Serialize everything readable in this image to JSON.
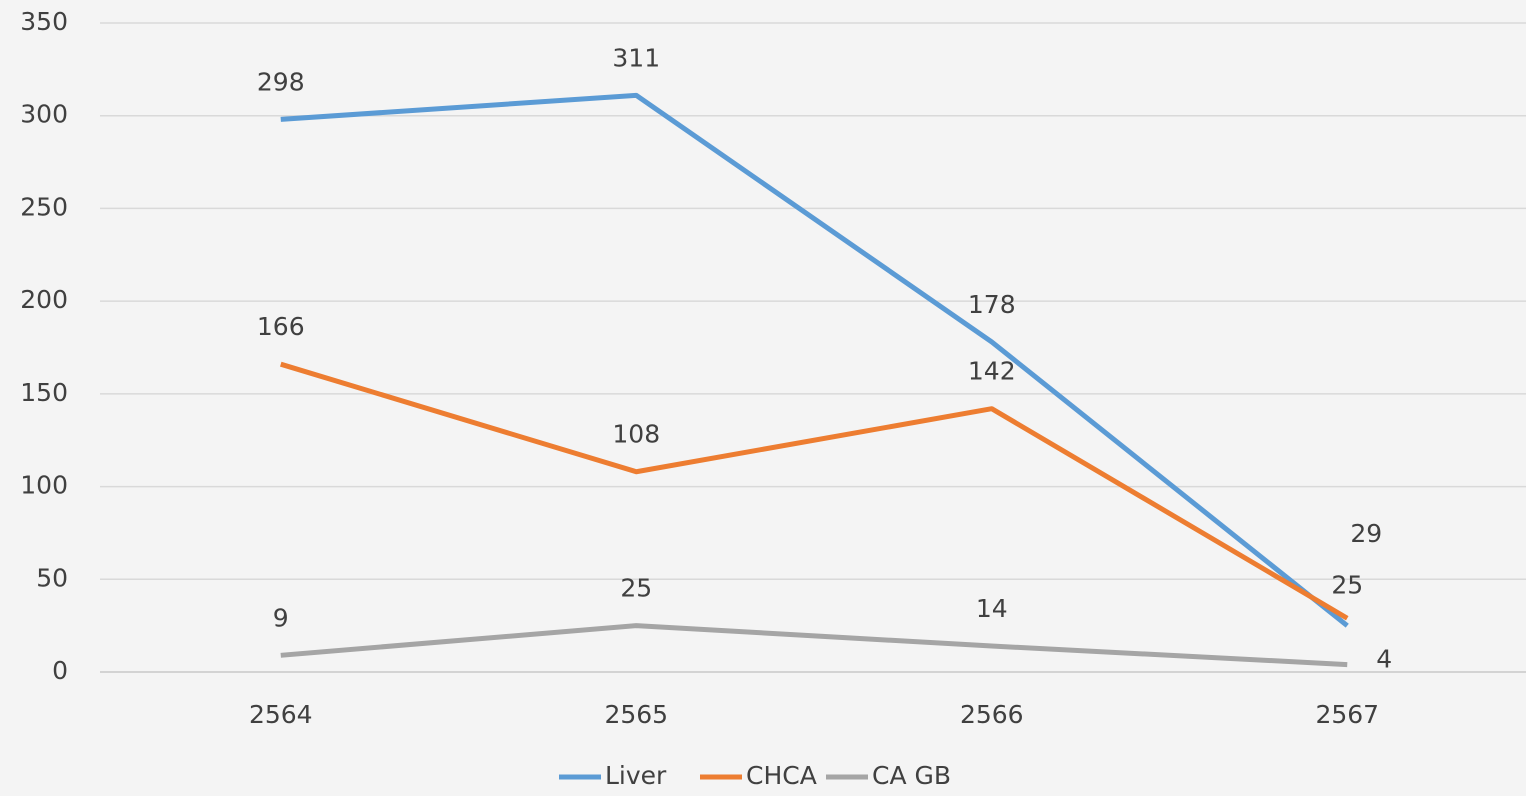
{
  "chart_data": {
    "type": "line",
    "categories": [
      "2564",
      "2565",
      "2566",
      "2567"
    ],
    "series": [
      {
        "name": "Liver",
        "color": "#5b9bd5",
        "values": [
          298,
          311,
          178,
          25
        ]
      },
      {
        "name": "CHCA",
        "color": "#ed7d31",
        "values": [
          166,
          108,
          142,
          29
        ]
      },
      {
        "name": "CA GB",
        "color": "#a5a5a5",
        "values": [
          9,
          25,
          14,
          4
        ]
      }
    ],
    "ylim": [
      0,
      350
    ],
    "yticks": [
      0,
      50,
      100,
      150,
      200,
      250,
      300,
      350
    ],
    "grid": true,
    "legend": "bottom"
  }
}
